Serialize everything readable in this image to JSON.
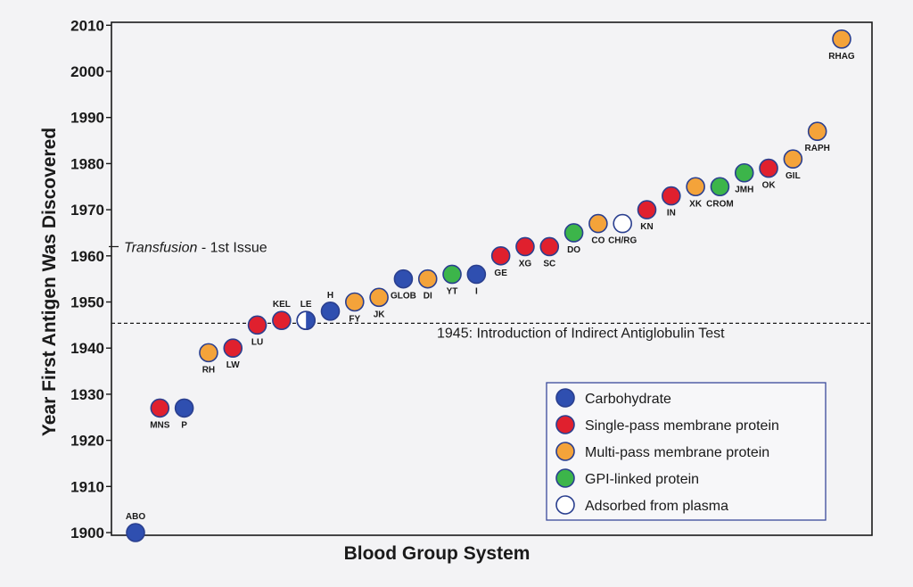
{
  "chart_data": {
    "type": "scatter",
    "xlabel": "Blood Group System",
    "ylabel": "Year First Antigen Was Discovered",
    "ylim": [
      1900,
      2010
    ],
    "yticks": [
      1900,
      1910,
      1920,
      1930,
      1940,
      1950,
      1960,
      1970,
      1980,
      1990,
      2000,
      2010
    ],
    "grid": false,
    "legend_position": "bottom-right",
    "categories": {
      "carbohydrate": {
        "label": "Carbohydrate",
        "color": "#2f4fb0"
      },
      "single": {
        "label": "Single-pass membrane protein",
        "color": "#e0202e"
      },
      "multi": {
        "label": "Multi-pass membrane protein",
        "color": "#f4a33a"
      },
      "gpi": {
        "label": "GPI-linked protein",
        "color": "#3cb54a"
      },
      "plasma": {
        "label": "Adsorbed from plasma",
        "color": "#ffffff"
      }
    },
    "legend_order": [
      "carbohydrate",
      "single",
      "multi",
      "gpi",
      "plasma"
    ],
    "points": [
      {
        "label": "ABO",
        "year": 1900,
        "type": "carbohydrate"
      },
      {
        "label": "MNS",
        "year": 1927,
        "type": "single"
      },
      {
        "label": "P",
        "year": 1927,
        "type": "carbohydrate"
      },
      {
        "label": "RH",
        "year": 1939,
        "type": "multi"
      },
      {
        "label": "LW",
        "year": 1940,
        "type": "single"
      },
      {
        "label": "LU",
        "year": 1945,
        "type": "single"
      },
      {
        "label": "KEL",
        "year": 1946,
        "type": "single"
      },
      {
        "label": "LE",
        "year": 1946,
        "type": "carbohydrate",
        "half": true
      },
      {
        "label": "H",
        "year": 1948,
        "type": "carbohydrate"
      },
      {
        "label": "FY",
        "year": 1950,
        "type": "multi"
      },
      {
        "label": "JK",
        "year": 1951,
        "type": "multi"
      },
      {
        "label": "GLOB",
        "year": 1955,
        "type": "carbohydrate"
      },
      {
        "label": "DI",
        "year": 1955,
        "type": "multi"
      },
      {
        "label": "YT",
        "year": 1956,
        "type": "gpi"
      },
      {
        "label": "I",
        "year": 1956,
        "type": "carbohydrate"
      },
      {
        "label": "GE",
        "year": 1960,
        "type": "single"
      },
      {
        "label": "XG",
        "year": 1962,
        "type": "single"
      },
      {
        "label": "SC",
        "year": 1962,
        "type": "single"
      },
      {
        "label": "DO",
        "year": 1965,
        "type": "gpi"
      },
      {
        "label": "CO",
        "year": 1967,
        "type": "multi"
      },
      {
        "label": "CH/RG",
        "year": 1967,
        "type": "plasma"
      },
      {
        "label": "KN",
        "year": 1970,
        "type": "single"
      },
      {
        "label": "IN",
        "year": 1973,
        "type": "single"
      },
      {
        "label": "XK",
        "year": 1975,
        "type": "multi"
      },
      {
        "label": "CROM",
        "year": 1975,
        "type": "gpi"
      },
      {
        "label": "JMH",
        "year": 1978,
        "type": "gpi"
      },
      {
        "label": "OK",
        "year": 1979,
        "type": "single"
      },
      {
        "label": "GIL",
        "year": 1981,
        "type": "multi"
      },
      {
        "label": "RAPH",
        "year": 1987,
        "type": "multi"
      },
      {
        "label": "RHAG",
        "year": 2007,
        "type": "multi"
      }
    ],
    "annotations": {
      "transfusion_italic": "Transfusion",
      "transfusion_rest": " - 1st Issue",
      "transfusion_year": 1962,
      "agt_text": "1945: Introduction of Indirect Antiglobulin Test",
      "agt_year": 1945
    }
  }
}
